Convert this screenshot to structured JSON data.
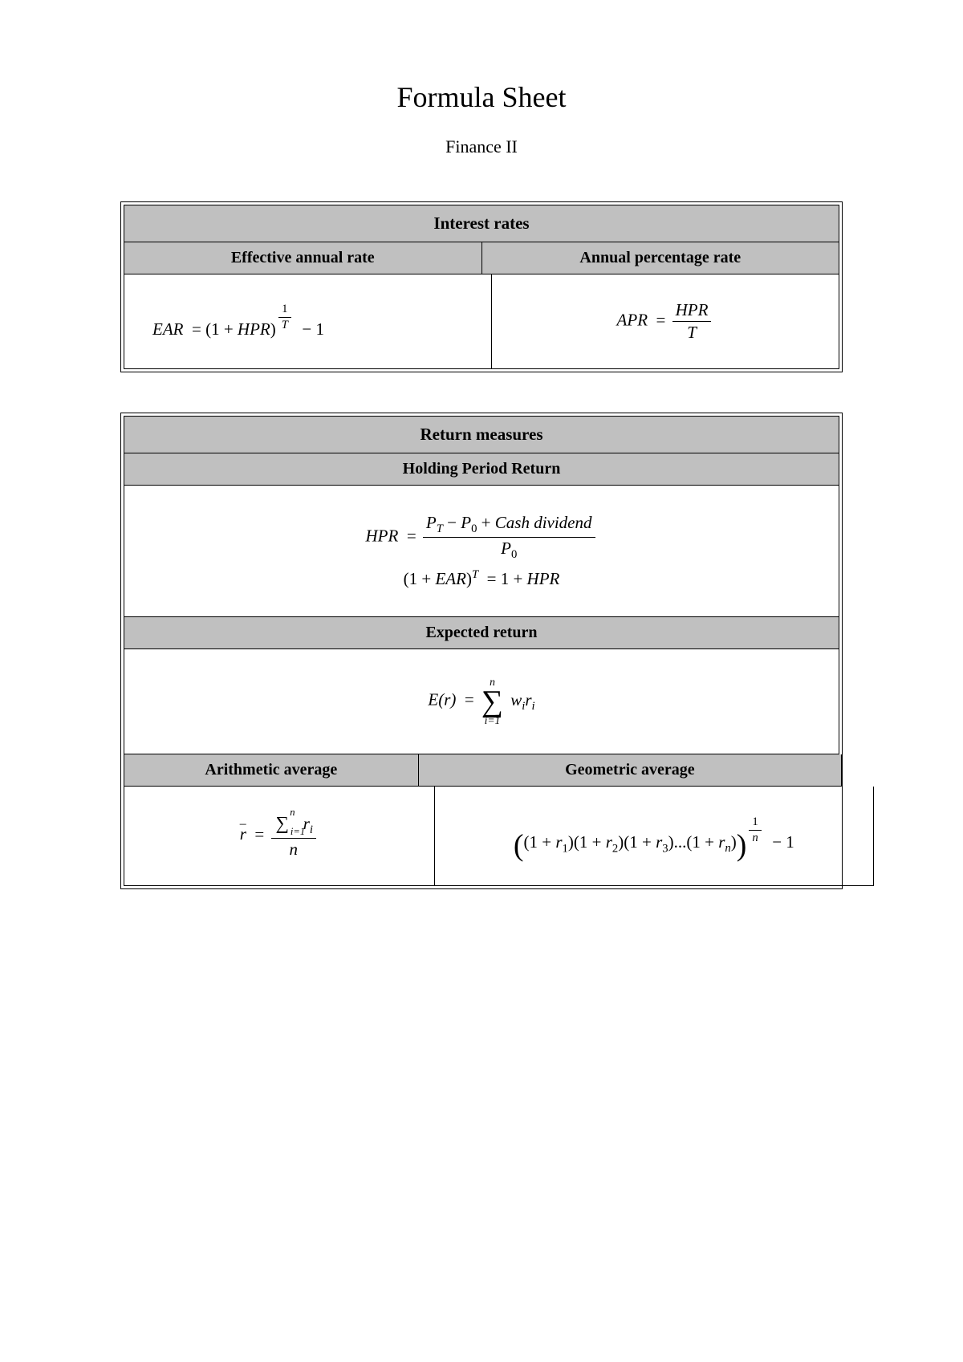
{
  "title": "Formula Sheet",
  "subtitle": "Finance II",
  "colors": {
    "header_bg": "#c0c0c0",
    "border": "#000000",
    "page_bg": "#ffffff"
  },
  "typography": {
    "title_fontsize": 36,
    "subtitle_fontsize": 22,
    "header_fontsize": 21,
    "subheader_fontsize": 20,
    "formula_fontsize": 21,
    "font_family": "Times New Roman"
  },
  "section1": {
    "heading": "Interest rates",
    "cols": [
      "Effective annual rate",
      "Annual percentage rate"
    ],
    "formulas": {
      "ear_lhs": "EAR",
      "apr_lhs": "APR",
      "hpr": "HPR",
      "T": "T"
    }
  },
  "section2": {
    "heading": "Return measures",
    "sub1": "Holding Period Return",
    "sub2": "Expected return",
    "cols": [
      "Arithmetic average",
      "Geometric average"
    ],
    "formulas": {
      "hpr": "HPR",
      "PT": "P",
      "P0": "P",
      "cash_div": "Cash dividend",
      "ear": "EAR",
      "Er_lhs": "E(r)",
      "n": "n",
      "wi": "w",
      "ri": "r",
      "rbar": "r",
      "sum": "∑",
      "one": "1"
    }
  }
}
